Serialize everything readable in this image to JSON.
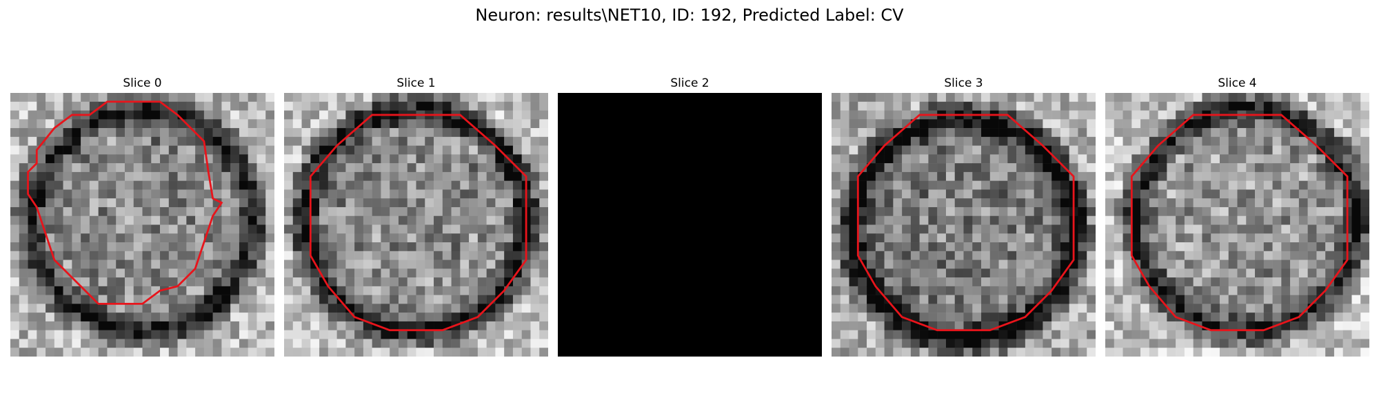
{
  "figure": {
    "title": "Neuron: results\\NET10, ID: 192, Predicted Label: CV"
  },
  "colors": {
    "contour": "#e8141b",
    "background": "#ffffff",
    "blank_slice": "#000000"
  },
  "slices": [
    {
      "title": "Slice 0",
      "blank": false,
      "seed": 11,
      "ring": 0.62,
      "base": 0.6,
      "contour_shape": "cut-left-top"
    },
    {
      "title": "Slice 1",
      "blank": false,
      "seed": 23,
      "ring": 0.7,
      "base": 0.62,
      "contour_shape": "octagon"
    },
    {
      "title": "Slice 2",
      "blank": true
    },
    {
      "title": "Slice 3",
      "blank": false,
      "seed": 37,
      "ring": 0.74,
      "base": 0.56,
      "contour_shape": "octagon"
    },
    {
      "title": "Slice 4",
      "blank": false,
      "seed": 53,
      "ring": 0.66,
      "base": 0.64,
      "contour_shape": "octagon"
    }
  ]
}
